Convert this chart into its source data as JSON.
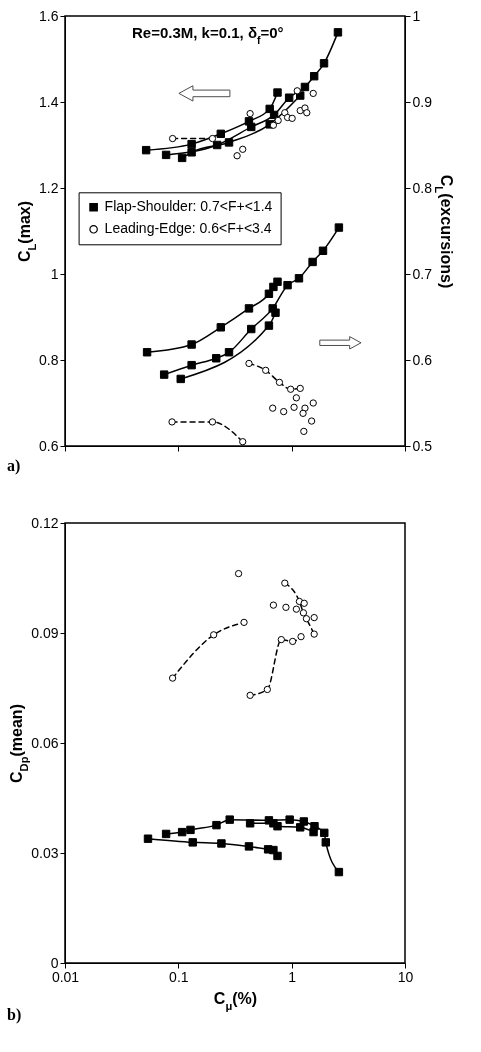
{
  "chart_data": [
    {
      "type": "line",
      "title": "Re=0.3M, k=0.1, δ$_{f}$=0°",
      "ylabel": "C$_{L}$(max)",
      "y2label": "C$_{L}$(excursions)",
      "annotations": [
        "a)"
      ],
      "log": "x",
      "legend": "left",
      "tick_labels": "y",
      "xlim": [
        0.01,
        10
      ],
      "xticks": [
        0.01,
        0.1,
        1,
        10
      ],
      "ylim": [
        0.6,
        1.6
      ],
      "yticks": [
        0.6,
        0.8,
        1,
        1.2,
        1.4,
        1.6
      ],
      "y2lim": [
        0.5,
        1
      ],
      "y2ticks": [
        0.5,
        0.6,
        0.7,
        0.8,
        0.9,
        1
      ],
      "series": [
        {
          "name": "Flap-Shoulder: 0.7<F+<1.4",
          "type": "line",
          "marker": "square",
          "line_style": "solid",
          "color": "#000000",
          "x": [
            0.078,
            0.22,
            0.44,
            0.7,
            0.95,
            1.31,
            1.58,
            1.93,
            2.56
          ],
          "values": [
            1.277,
            1.3,
            1.342,
            1.37,
            1.41,
            1.435,
            1.46,
            1.49,
            1.562
          ]
        },
        {
          "type": "line",
          "marker": "square",
          "line_style": "solid",
          "color": "#000000",
          "x": [
            0.052,
            0.131,
            0.237,
            0.42,
            0.64,
            0.75
          ],
          "values": [
            1.288,
            1.302,
            1.326,
            1.355,
            1.384,
            1.422
          ]
        },
        {
          "type": "line",
          "marker": "square",
          "line_style": "solid",
          "color": "#000000",
          "x": [
            0.108,
            0.131,
            0.28,
            0.64,
            1.19
          ],
          "values": [
            1.27,
            1.283,
            1.306,
            1.348,
            1.415
          ]
        },
        {
          "name": "Leading-Edge: 0.6<F+<3.4",
          "type": "line",
          "marker": "circle",
          "line_style": "dashed",
          "color": "#000000",
          "x": [
            0.089,
            0.2
          ],
          "values": [
            1.315,
            1.315
          ]
        },
        {
          "type": "scatter",
          "marker": "circle",
          "color": "#000000",
          "x": [
            0.33,
            0.37,
            0.43,
            0.69,
            0.76,
            0.87,
            0.92,
            1.01,
            1.12,
            1.19,
            1.31,
            1.36,
            1.55
          ],
          "values": [
            1.275,
            1.29,
            1.373,
            1.346,
            1.357,
            1.375,
            1.364,
            1.362,
            1.426,
            1.38,
            1.386,
            1.375,
            1.42
          ]
        },
        {
          "type": "line",
          "marker": "square",
          "line_style": "solid",
          "color": "#000000",
          "axis": "y2",
          "x": [
            0.053,
            0.131,
            0.237,
            0.42,
            0.63,
            0.69,
            0.75
          ],
          "values": [
            0.609,
            0.618,
            0.638,
            0.66,
            0.677,
            0.685,
            0.691
          ]
        },
        {
          "type": "line",
          "marker": "square",
          "line_style": "solid",
          "color": "#000000",
          "axis": "y2",
          "x": [
            0.075,
            0.131,
            0.216,
            0.28,
            0.44,
            0.68,
            0.92,
            1.16,
            1.53,
            1.89,
            2.61
          ],
          "values": [
            0.583,
            0.594,
            0.602,
            0.609,
            0.636,
            0.66,
            0.687,
            0.695,
            0.714,
            0.727,
            0.754
          ]
        },
        {
          "type": "line",
          "marker": "square",
          "line_style": "solid",
          "color": "#000000",
          "axis": "y2",
          "x": [
            0.105,
            0.63,
            0.72
          ],
          "values": [
            0.578,
            0.64,
            0.655
          ]
        },
        {
          "type": "line",
          "marker": "circle",
          "line_style": "dashed",
          "color": "#000000",
          "axis": "y2",
          "x": [
            0.088,
            0.2,
            0.37
          ],
          "values": [
            0.528,
            0.528,
            0.505
          ]
        },
        {
          "type": "line",
          "marker": "circle",
          "line_style": "dashed",
          "color": "#000000",
          "axis": "y2",
          "x": [
            0.42,
            0.59,
            0.78,
            0.98,
            1.19
          ],
          "values": [
            0.596,
            0.588,
            0.574,
            0.566,
            0.567
          ]
        },
        {
          "type": "scatter",
          "marker": "circle",
          "color": "#000000",
          "axis": "y2",
          "x": [
            1.1,
            0.68,
            0.85,
            1.05,
            1.31,
            1.55,
            1.26,
            1.5,
            1.28
          ],
          "values": [
            0.556,
            0.544,
            0.54,
            0.545,
            0.544,
            0.55,
            0.538,
            0.529,
            0.517
          ]
        }
      ]
    },
    {
      "type": "line",
      "xlabel": "C$_{μ}$(%)",
      "ylabel": "C$_{Dp}$(mean)",
      "annotations": [
        "b)"
      ],
      "log": "x",
      "legend": "left",
      "xlim": [
        0.01,
        10
      ],
      "xticks": [
        0.01,
        0.1,
        1,
        10
      ],
      "ylim": [
        0,
        0.12
      ],
      "yticks": [
        0,
        0.03,
        0.06,
        0.09,
        0.12
      ],
      "series": [
        {
          "name": "Flap-Shoulder: 0.7<F+<1.4",
          "type": "line",
          "marker": "square",
          "line_style": "solid",
          "color": "#000000",
          "x": [
            0.078,
            0.108,
            0.128,
            0.217,
            0.284,
            0.63,
            0.96,
            1.28,
            1.59,
            1.94,
            2.0,
            2.61
          ],
          "values": [
            0.0352,
            0.0357,
            0.0363,
            0.0376,
            0.0391,
            0.0389,
            0.0391,
            0.0386,
            0.0373,
            0.0355,
            0.0329,
            0.0248
          ]
        },
        {
          "type": "line",
          "marker": "square",
          "line_style": "solid",
          "color": "#000000",
          "x": [
            0.054,
            0.134,
            0.24,
            0.42,
            0.62,
            0.69,
            0.75
          ],
          "values": [
            0.0339,
            0.0329,
            0.0326,
            0.0318,
            0.031,
            0.0308,
            0.0292
          ]
        },
        {
          "type": "line",
          "marker": "square",
          "line_style": "solid",
          "color": "#000000",
          "x": [
            0.43,
            0.69,
            0.75,
            1.19,
            1.56
          ],
          "values": [
            0.0381,
            0.0381,
            0.0373,
            0.037,
            0.0357
          ]
        },
        {
          "name": "Leading-Edge: 0.6<F+<3.4",
          "type": "line",
          "marker": "circle",
          "line_style": "dashed",
          "color": "#000000",
          "x": [
            0.089,
            0.205,
            0.38
          ],
          "values": [
            0.0777,
            0.0895,
            0.0929
          ]
        },
        {
          "type": "line",
          "marker": "circle",
          "line_style": "dashed",
          "color": "#000000",
          "x": [
            0.43,
            0.61,
            0.81,
            1.02,
            1.21
          ],
          "values": [
            0.073,
            0.0746,
            0.0882,
            0.0877,
            0.089
          ]
        },
        {
          "type": "line",
          "marker": "circle",
          "line_style": "dashed",
          "color": "#000000",
          "x": [
            0.87,
            1.17,
            1.27,
            1.35,
            1.58
          ],
          "values": [
            0.1036,
            0.0986,
            0.0955,
            0.0939,
            0.0897
          ]
        },
        {
          "type": "scatter",
          "marker": "circle",
          "color": "#000000",
          "x": [
            0.34,
            0.69,
            0.89,
            1.1,
            1.29,
            1.58
          ],
          "values": [
            0.1062,
            0.0976,
            0.097,
            0.0965,
            0.0981,
            0.0942
          ]
        }
      ]
    }
  ]
}
